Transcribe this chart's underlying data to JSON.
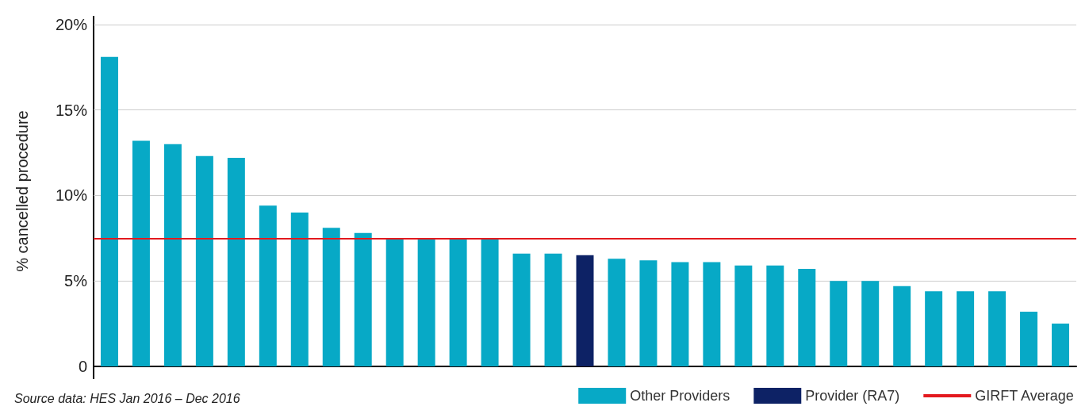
{
  "chart_data": {
    "type": "bar",
    "ylabel": "% cancelled procedure",
    "categories": [
      null,
      null,
      null,
      null,
      null,
      null,
      null,
      null,
      null,
      null,
      null,
      null,
      null,
      null,
      null,
      null,
      null,
      null,
      null,
      null,
      null,
      null,
      null,
      null,
      null,
      null,
      null,
      null,
      null,
      null,
      null
    ],
    "series": [
      {
        "name": "Other Providers",
        "color": "#07a9c6",
        "values": [
          18.1,
          13.2,
          13.0,
          12.3,
          12.2,
          9.4,
          9.0,
          8.1,
          7.8,
          7.5,
          7.5,
          7.5,
          7.5,
          6.6,
          6.6,
          null,
          6.3,
          6.2,
          6.1,
          6.1,
          5.9,
          5.9,
          5.7,
          5.0,
          5.0,
          4.7,
          4.4,
          4.4,
          4.4,
          3.2,
          2.5
        ]
      },
      {
        "name": "Provider (RA7)",
        "color": "#0d2265",
        "values": [
          null,
          null,
          null,
          null,
          null,
          null,
          null,
          null,
          null,
          null,
          null,
          null,
          null,
          null,
          null,
          6.5,
          null,
          null,
          null,
          null,
          null,
          null,
          null,
          null,
          null,
          null,
          null,
          null,
          null,
          null,
          null
        ]
      }
    ],
    "ylim": [
      0,
      20.5
    ],
    "yticks": [
      {
        "value": 0,
        "label": "0"
      },
      {
        "value": 5,
        "label": "5%"
      },
      {
        "value": 10,
        "label": "10%"
      },
      {
        "value": 15,
        "label": "15%"
      },
      {
        "value": 20,
        "label": "20%"
      }
    ],
    "grid": "y",
    "legend": "bottom right",
    "ref_lines": [
      {
        "axis": "y",
        "value": 7.5,
        "label": "GIRFT Average",
        "color": "#e3191e",
        "line_style": "solid"
      }
    ],
    "annotations": [
      "Source data: HES Jan 2016 – Dec 2016"
    ]
  }
}
